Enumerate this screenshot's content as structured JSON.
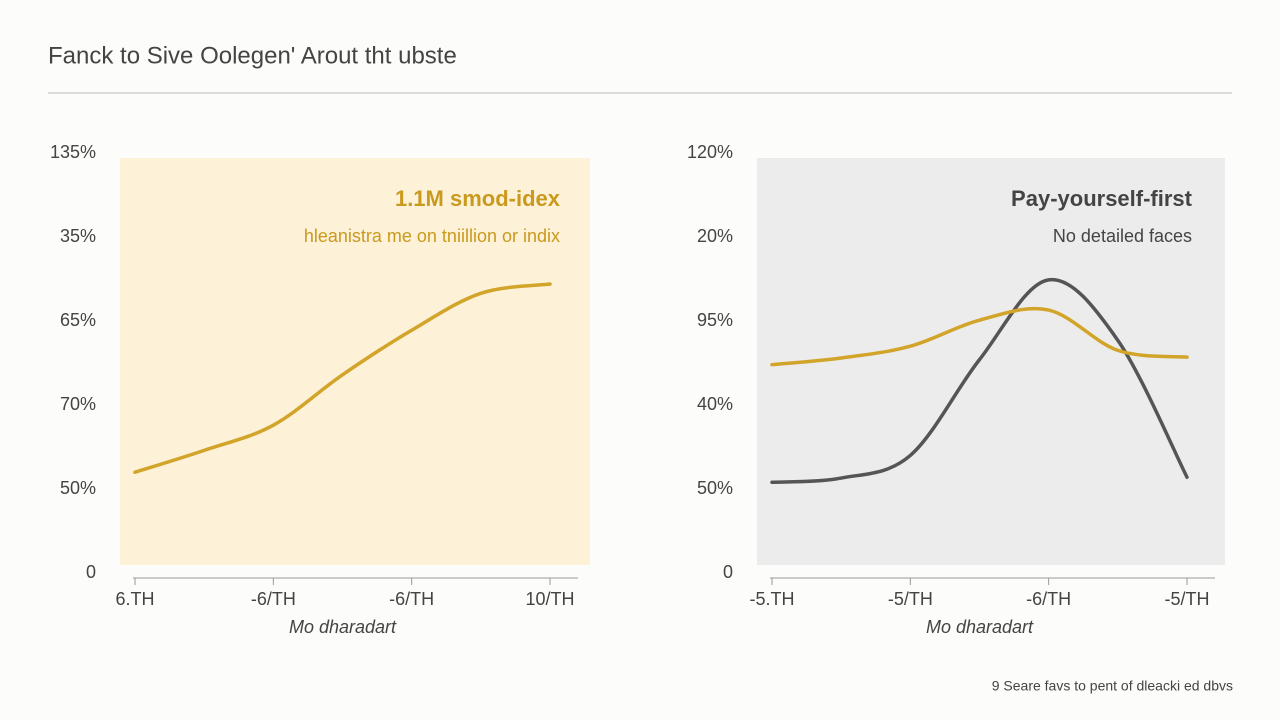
{
  "title": "Fanck to Sive Oolegen' Arout tht ubste",
  "footer": "9 Seare favs to pent of dleacki ed dbvs",
  "chart_data": [
    {
      "type": "line",
      "title": "1.1M smod-idex",
      "subtitle": "hleanistra me on tniillion or indix",
      "title_color": "#c99a1e",
      "panel_color": "#fdf1d8",
      "x_label": "Mo dharadart",
      "categories": [
        "6.TH",
        null,
        "-6/TH",
        null,
        "-6/TH",
        null,
        "10/TH"
      ],
      "series": [
        {
          "color": "#d2a42a",
          "values": [
            1.2,
            1.46,
            1.76,
            2.36,
            2.89,
            3.33,
            3.44
          ]
        }
      ],
      "ylim": [
        0,
        5
      ],
      "yticks": [
        0,
        {
          "value": 1,
          "label": "50%"
        },
        {
          "value": 2,
          "label": "70%"
        },
        {
          "value": 3,
          "label": "65%"
        },
        {
          "value": 4,
          "label": "35%"
        },
        {
          "value": 5,
          "label": "135%"
        }
      ]
    },
    {
      "type": "line",
      "title": "Pay-yourself-first",
      "subtitle": "No detailed faces",
      "title_color": "#444444",
      "panel_color": "#ececec",
      "x_label": "Mo dharadart",
      "categories": [
        "-5.TH",
        null,
        "-5/TH",
        null,
        "-6/TH",
        null,
        "-5/TH"
      ],
      "series": [
        {
          "color": "#555555",
          "values": [
            1.08,
            1.13,
            1.4,
            2.54,
            3.49,
            2.77,
            1.14
          ]
        },
        {
          "color": "#d2a42a",
          "values": [
            2.48,
            2.56,
            2.7,
            3.01,
            3.13,
            2.65,
            2.57
          ]
        }
      ],
      "ylim": [
        0,
        5
      ],
      "yticks": [
        0,
        {
          "value": 1,
          "label": "50%"
        },
        {
          "value": 2,
          "label": "40%"
        },
        {
          "value": 3,
          "label": "95%"
        },
        {
          "value": 4,
          "label": "20%"
        },
        {
          "value": 5,
          "label": "120%"
        }
      ]
    }
  ]
}
